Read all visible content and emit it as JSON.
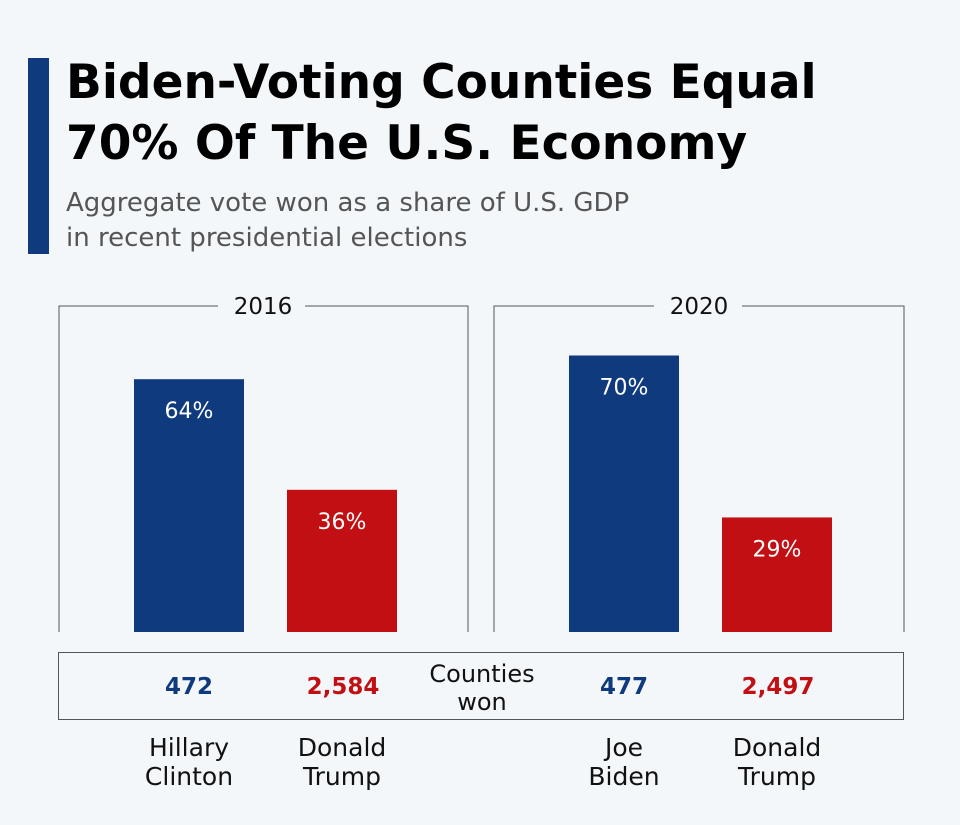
{
  "title_lines": [
    "Biden-Voting Counties Equal",
    "70% Of The U.S. Economy"
  ],
  "subtitle_lines": [
    "Aggregate vote won as a share of U.S. GDP",
    "in recent presidential elections"
  ],
  "colors": {
    "democrat": "#0f3b7e",
    "republican": "#c10f13",
    "accent": "#0f3b7e"
  },
  "counties_label_lines": [
    "Counties",
    "won"
  ],
  "chart_data": [
    {
      "type": "bar",
      "title": "2016",
      "categories": [
        "Hillary Clinton",
        "Donald Trump"
      ],
      "category_lines": [
        [
          "Hillary",
          "Clinton"
        ],
        [
          "Donald",
          "Trump"
        ]
      ],
      "values": [
        64,
        36
      ],
      "value_labels": [
        "64%",
        "36%"
      ],
      "counties_won": [
        "472",
        "2,584"
      ],
      "ylim": [
        0,
        100
      ]
    },
    {
      "type": "bar",
      "title": "2020",
      "categories": [
        "Joe Biden",
        "Donald Trump"
      ],
      "category_lines": [
        [
          "Joe",
          "Biden"
        ],
        [
          "Donald",
          "Trump"
        ]
      ],
      "values": [
        70,
        29
      ],
      "value_labels": [
        "70%",
        "29%"
      ],
      "counties_won": [
        "477",
        "2,497"
      ],
      "ylim": [
        0,
        100
      ]
    }
  ]
}
